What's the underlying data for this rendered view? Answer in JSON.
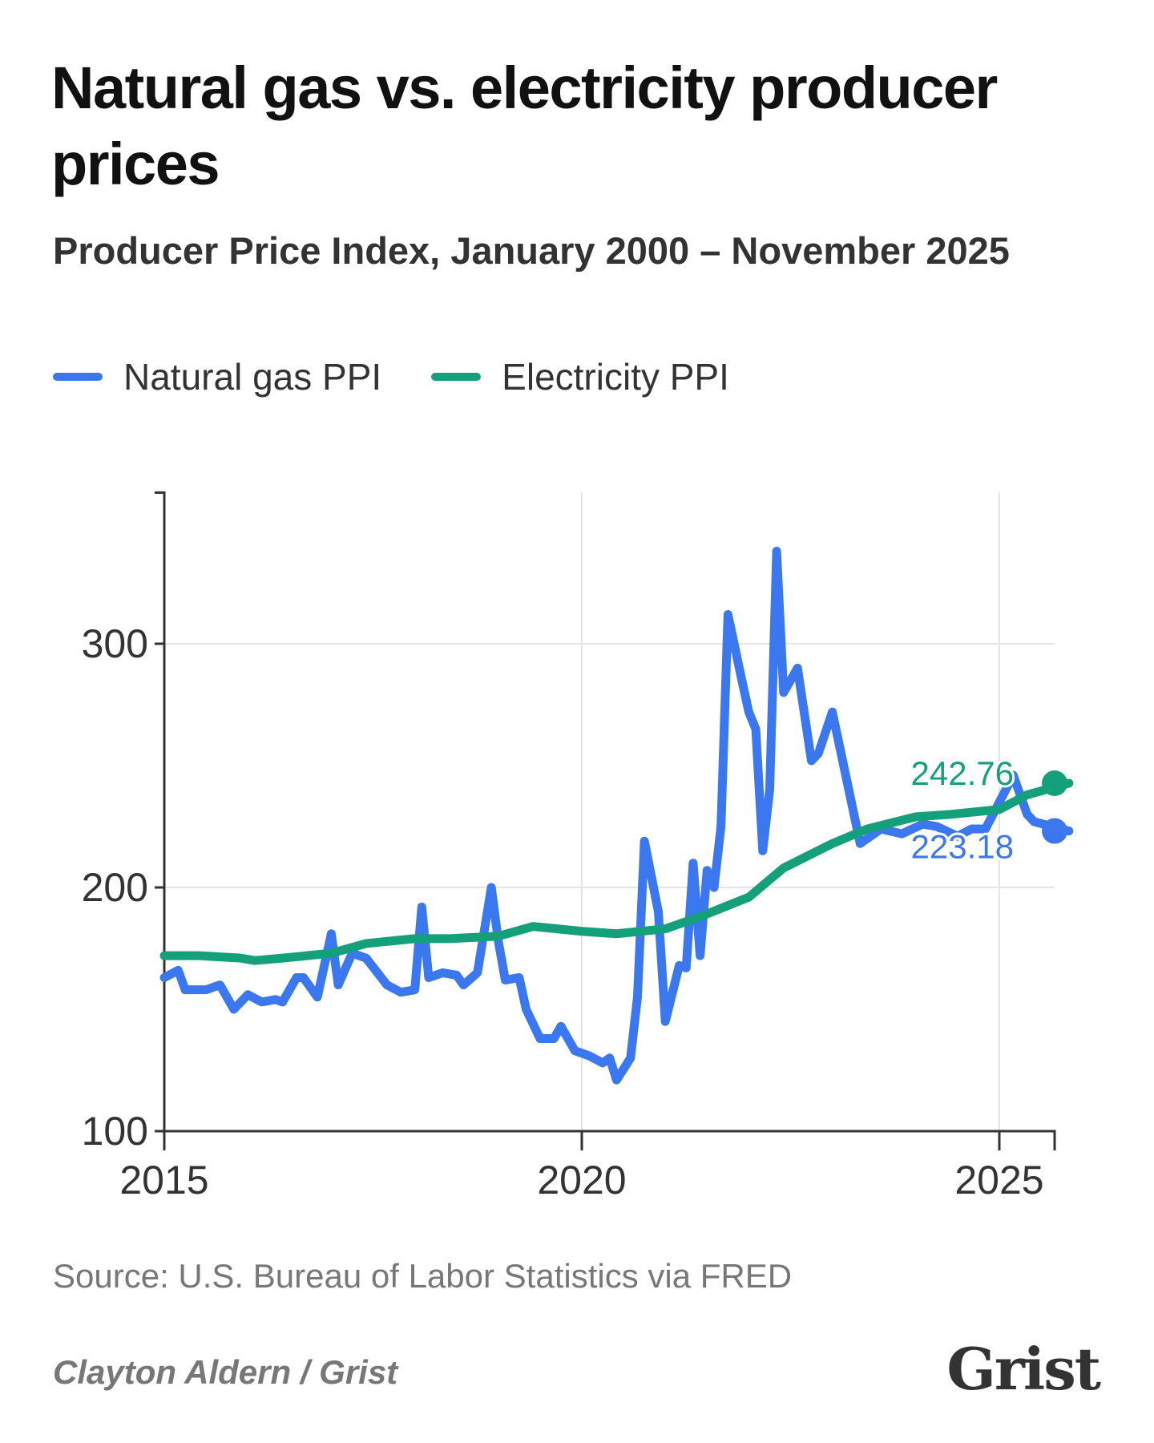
{
  "title": "Natural gas vs. electricity producer prices",
  "subtitle": "Producer Price Index, January 2000 – November 2025",
  "legend": [
    {
      "label": "Natural gas PPI",
      "color": "#3b78f0"
    },
    {
      "label": "Electricity PPI",
      "color": "#14a07a"
    }
  ],
  "source": "Source: U.S. Bureau of Labor Statistics via FRED",
  "credit": "Clayton Aldern / Grist",
  "logo": "Grist",
  "chart_data": {
    "type": "line",
    "xlabel": "",
    "ylabel": "",
    "xlim": [
      "2015-01",
      "2025-11"
    ],
    "ylim": [
      100,
      362
    ],
    "x_ticks": [
      "2015",
      "2020",
      "2025"
    ],
    "y_ticks": [
      100,
      200,
      300
    ],
    "grid": true,
    "legend_placement": "top-left",
    "series": [
      {
        "name": "Natural gas PPI",
        "color": "#3b78f0",
        "end_label": "223.18",
        "points": [
          [
            "2015-01",
            163
          ],
          [
            "2015-03",
            166
          ],
          [
            "2015-04",
            158
          ],
          [
            "2015-07",
            158
          ],
          [
            "2015-09",
            160
          ],
          [
            "2015-11",
            150
          ],
          [
            "2016-01",
            156
          ],
          [
            "2016-03",
            153
          ],
          [
            "2016-05",
            154
          ],
          [
            "2016-06",
            153
          ],
          [
            "2016-08",
            163
          ],
          [
            "2016-09",
            163
          ],
          [
            "2016-11",
            155
          ],
          [
            "2017-01",
            181
          ],
          [
            "2017-02",
            160
          ],
          [
            "2017-04",
            173
          ],
          [
            "2017-06",
            171
          ],
          [
            "2017-09",
            160
          ],
          [
            "2017-11",
            157
          ],
          [
            "2018-01",
            158
          ],
          [
            "2018-02",
            192
          ],
          [
            "2018-03",
            163
          ],
          [
            "2018-05",
            165
          ],
          [
            "2018-07",
            164
          ],
          [
            "2018-08",
            160
          ],
          [
            "2018-10",
            165
          ],
          [
            "2018-12",
            200
          ],
          [
            "2019-01",
            178
          ],
          [
            "2019-02",
            162
          ],
          [
            "2019-04",
            163
          ],
          [
            "2019-05",
            150
          ],
          [
            "2019-07",
            138
          ],
          [
            "2019-09",
            138
          ],
          [
            "2019-10",
            143
          ],
          [
            "2019-12",
            133
          ],
          [
            "2020-02",
            131
          ],
          [
            "2020-04",
            128
          ],
          [
            "2020-05",
            130
          ],
          [
            "2020-06",
            121
          ],
          [
            "2020-08",
            130
          ],
          [
            "2020-09",
            155
          ],
          [
            "2020-10",
            219
          ],
          [
            "2020-12",
            190
          ],
          [
            "2021-01",
            145
          ],
          [
            "2021-03",
            168
          ],
          [
            "2021-04",
            167
          ],
          [
            "2021-05",
            210
          ],
          [
            "2021-06",
            172
          ],
          [
            "2021-07",
            207
          ],
          [
            "2021-08",
            200
          ],
          [
            "2021-09",
            225
          ],
          [
            "2021-10",
            312
          ],
          [
            "2021-12",
            285
          ],
          [
            "2022-01",
            272
          ],
          [
            "2022-02",
            265
          ],
          [
            "2022-03",
            215
          ],
          [
            "2022-04",
            240
          ],
          [
            "2022-05",
            338
          ],
          [
            "2022-06",
            280
          ],
          [
            "2022-08",
            290
          ],
          [
            "2022-10",
            252
          ],
          [
            "2022-11",
            255
          ],
          [
            "2023-01",
            272
          ],
          [
            "2023-03",
            245
          ],
          [
            "2023-05",
            218
          ],
          [
            "2023-08",
            224
          ],
          [
            "2023-11",
            222
          ],
          [
            "2024-02",
            226
          ],
          [
            "2024-04",
            225
          ],
          [
            "2024-07",
            221
          ],
          [
            "2024-09",
            224
          ],
          [
            "2024-11",
            224
          ],
          [
            "2025-03",
            246
          ],
          [
            "2025-05",
            230
          ],
          [
            "2025-06",
            227
          ],
          [
            "2025-11",
            223.18
          ]
        ]
      },
      {
        "name": "Electricity PPI",
        "color": "#14a07a",
        "end_label": "242.76",
        "points": [
          [
            "2015-01",
            172
          ],
          [
            "2015-06",
            172
          ],
          [
            "2015-12",
            171
          ],
          [
            "2016-02",
            170
          ],
          [
            "2016-06",
            171
          ],
          [
            "2017-01",
            173
          ],
          [
            "2017-06",
            177
          ],
          [
            "2018-01",
            179
          ],
          [
            "2018-06",
            179
          ],
          [
            "2019-01",
            180
          ],
          [
            "2019-06",
            184
          ],
          [
            "2020-01",
            182
          ],
          [
            "2020-06",
            181
          ],
          [
            "2021-01",
            183
          ],
          [
            "2021-06",
            188
          ],
          [
            "2022-01",
            196
          ],
          [
            "2022-06",
            208
          ],
          [
            "2023-01",
            218
          ],
          [
            "2023-06",
            224
          ],
          [
            "2024-01",
            229
          ],
          [
            "2024-06",
            230
          ],
          [
            "2025-01",
            232
          ],
          [
            "2025-05",
            238
          ],
          [
            "2025-11",
            242.76
          ]
        ]
      }
    ]
  }
}
